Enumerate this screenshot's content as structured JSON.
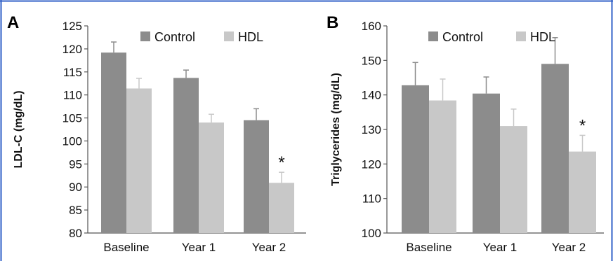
{
  "chart_data": [
    {
      "panel": "A",
      "type": "bar",
      "ylabel": "LDL-C (mg/dL)",
      "ylim": [
        80,
        125
      ],
      "yticks": [
        80,
        85,
        90,
        95,
        100,
        105,
        110,
        115,
        120,
        125
      ],
      "categories": [
        "Baseline",
        "Year 1",
        "Year 2"
      ],
      "series": [
        {
          "name": "Control",
          "values": [
            119.2,
            113.7,
            104.5
          ],
          "error": [
            2.3,
            1.7,
            2.5
          ],
          "color": "#8c8c8c"
        },
        {
          "name": "HDL",
          "values": [
            111.4,
            104.0,
            90.9
          ],
          "error": [
            2.2,
            1.8,
            2.3
          ],
          "color": "#c8c8c8"
        }
      ],
      "annotations": [
        {
          "text": "*",
          "category": "Year 2",
          "series": "HDL"
        }
      ],
      "legend": "top-right",
      "grid": false
    },
    {
      "panel": "B",
      "type": "bar",
      "ylabel": "Triglycerides (mg/dL)",
      "ylim": [
        100,
        160
      ],
      "yticks": [
        100,
        110,
        120,
        130,
        140,
        150,
        160
      ],
      "categories": [
        "Baseline",
        "Year 1",
        "Year 2"
      ],
      "series": [
        {
          "name": "Control",
          "values": [
            142.8,
            140.4,
            149.0
          ],
          "error": [
            6.6,
            4.8,
            7.6
          ],
          "color": "#8c8c8c"
        },
        {
          "name": "HDL",
          "values": [
            138.4,
            131.0,
            123.6
          ],
          "error": [
            6.2,
            4.9,
            4.7
          ],
          "color": "#c8c8c8"
        }
      ],
      "annotations": [
        {
          "text": "*",
          "category": "Year 2",
          "series": "HDL"
        }
      ],
      "legend": "top-right",
      "grid": false
    }
  ],
  "colors": {
    "border": "#2f5fc7"
  }
}
